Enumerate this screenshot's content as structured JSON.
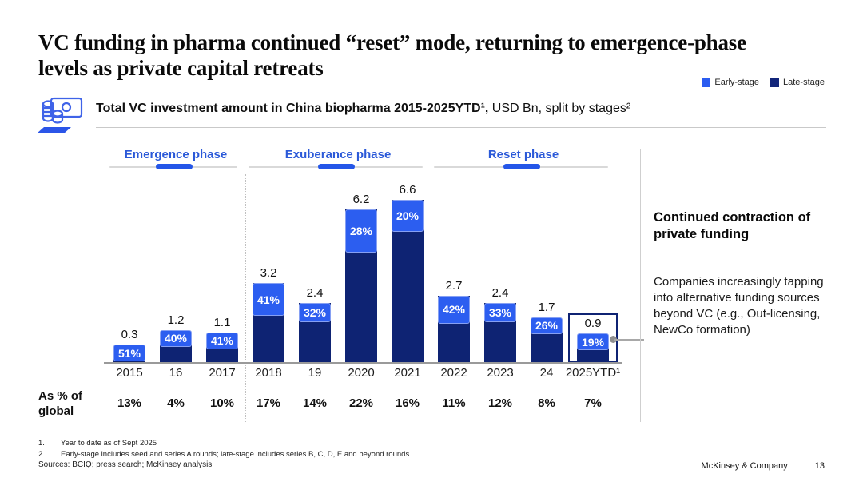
{
  "title": "VC funding in pharma continued “reset” mode, returning to emergence-phase levels as private capital retreats",
  "legend": [
    {
      "label": "Early-stage",
      "color": "#2b5cf0"
    },
    {
      "label": "Late-stage",
      "color": "#12257a"
    }
  ],
  "subtitle": {
    "bold": "Total VC investment amount in China biopharma 2015-2025YTD¹,",
    "rest": " USD Bn, split by stages²"
  },
  "icon_name": "money-coins-icon",
  "colors": {
    "early": "#2c5ef0",
    "late": "#0e2373",
    "phase_text": "#2b59d8",
    "phase_seg": "#2456e8"
  },
  "chart_data": {
    "type": "bar",
    "title": "Total VC investment amount in China biopharma 2015-2025YTD, USD Bn, split by stages",
    "stacked": true,
    "categories": [
      "2015",
      "16",
      "2017",
      "2018",
      "19",
      "2020",
      "2021",
      "2022",
      "2023",
      "24",
      "2025YTD¹"
    ],
    "totals": [
      0.3,
      1.2,
      1.1,
      3.2,
      2.4,
      6.2,
      6.6,
      2.7,
      2.4,
      1.7,
      0.9
    ],
    "early_stage_pct": [
      51,
      40,
      41,
      41,
      32,
      28,
      20,
      42,
      33,
      26,
      19
    ],
    "series_note": "early-stage share shown as % inside light segment; remainder is late-stage",
    "as_pct_of_global": [
      "13%",
      "4%",
      "10%",
      "17%",
      "14%",
      "22%",
      "16%",
      "11%",
      "12%",
      "8%",
      "7%"
    ],
    "phases": [
      {
        "label": "Emergence phase",
        "cols": 3
      },
      {
        "label": "Exuberance phase",
        "cols": 4
      },
      {
        "label": "Reset phase",
        "cols": 4
      }
    ],
    "highlight_index": 10,
    "ylim": [
      0,
      7
    ],
    "legend_entries": [
      "Early-stage",
      "Late-stage"
    ],
    "row_header": "As % of\nglobal"
  },
  "annotation": {
    "title": "Continued contraction of private funding",
    "body": "Companies increasingly tapping into alternative funding sources beyond VC (e.g., Out-licensing, NewCo formation)"
  },
  "footnotes": [
    {
      "num": "1.",
      "text": "Year to date as of Sept 2025"
    },
    {
      "num": "2.",
      "text": "Early-stage includes seed and series A rounds; late-stage includes series B, C, D, E and beyond rounds"
    }
  ],
  "sources": "Sources: BCIQ; press search; McKinsey analysis",
  "footer": {
    "brand": "McKinsey & Company",
    "page": "13"
  }
}
